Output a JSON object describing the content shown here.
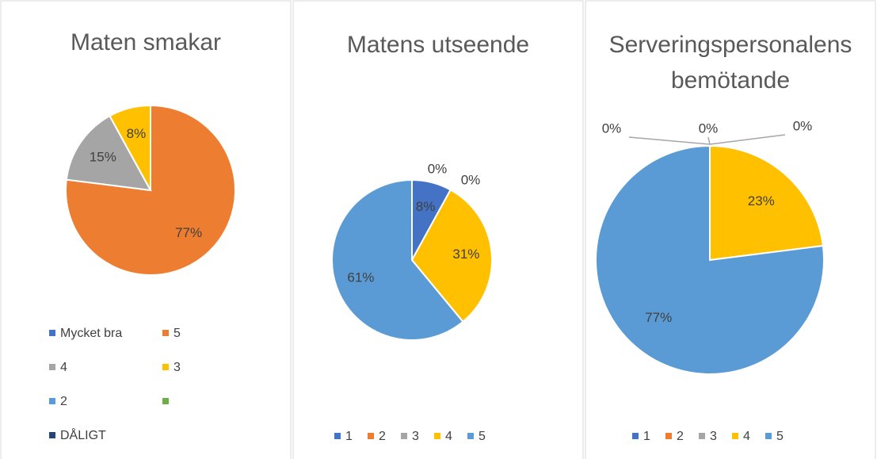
{
  "chart_data": [
    {
      "type": "pie",
      "title": "Maten smakar",
      "categories": [
        "Mycket bra",
        "5",
        "4",
        "3",
        "2",
        null,
        "DÅLIGT"
      ],
      "values": [
        0,
        77,
        15,
        8,
        0,
        0,
        0
      ],
      "value_labels": [
        null,
        "77%",
        "15%",
        "8%",
        null,
        null,
        null
      ],
      "colors": [
        "#4472c4",
        "#ed7d31",
        "#a5a5a5",
        "#ffc000",
        "#5b9bd5",
        "#70ad47",
        "#264478"
      ],
      "legend": "bottom"
    },
    {
      "type": "pie",
      "title": "Matens utseende",
      "categories": [
        "1",
        "2",
        "3",
        "4",
        "5"
      ],
      "values": [
        8,
        0,
        0,
        31,
        61
      ],
      "value_labels": [
        "8%",
        "0%",
        "0%",
        "31%",
        "61%"
      ],
      "colors": [
        "#4472c4",
        "#ed7d31",
        "#a5a5a5",
        "#ffc000",
        "#5b9bd5"
      ],
      "legend": "bottom"
    },
    {
      "type": "pie",
      "title": "Serveringspersonalens bemötande",
      "categories": [
        "1",
        "2",
        "3",
        "4",
        "5"
      ],
      "values": [
        0,
        0,
        0,
        23,
        77
      ],
      "value_labels": [
        "0%",
        "0%",
        "0%",
        "23%",
        "77%"
      ],
      "colors": [
        "#4472c4",
        "#ed7d31",
        "#a5a5a5",
        "#ffc000",
        "#5b9bd5"
      ],
      "legend": "bottom"
    }
  ]
}
